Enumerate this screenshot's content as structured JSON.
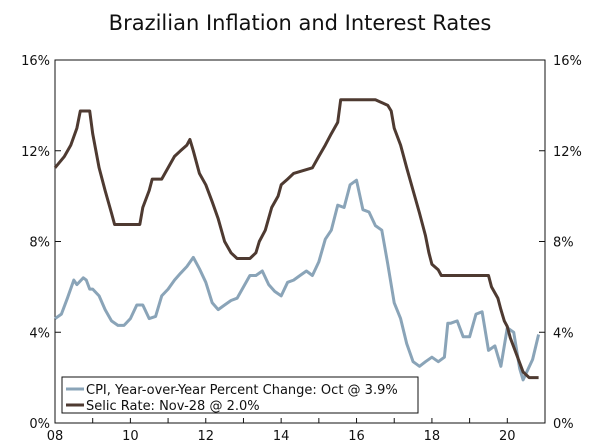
{
  "chart_data": {
    "type": "line",
    "title": "Brazilian Inflation and Interest Rates",
    "xlabel": "",
    "ylabel": "",
    "xlim": [
      2008.0,
      2021.0
    ],
    "ylim": [
      0,
      16
    ],
    "x_ticks": [
      "08",
      "10",
      "12",
      "14",
      "16",
      "18",
      "20"
    ],
    "y_ticks_left": [
      "0%",
      "4%",
      "8%",
      "12%",
      "16%"
    ],
    "y_ticks_right": [
      "0%",
      "4%",
      "8%",
      "12%",
      "16%"
    ],
    "grid": false,
    "legend_position": "bottom-left",
    "colors": {
      "cpi": "#8aa4b8",
      "selic": "#4e3a31",
      "axis": "#111111"
    },
    "series": [
      {
        "name": "CPI, Year-over-Year Percent Change: Oct @ 3.9%",
        "points": [
          [
            2008.0,
            4.6
          ],
          [
            2008.17,
            4.8
          ],
          [
            2008.33,
            5.5
          ],
          [
            2008.5,
            6.3
          ],
          [
            2008.58,
            6.1
          ],
          [
            2008.75,
            6.4
          ],
          [
            2008.83,
            6.3
          ],
          [
            2008.92,
            5.9
          ],
          [
            2009.0,
            5.9
          ],
          [
            2009.17,
            5.6
          ],
          [
            2009.33,
            5.0
          ],
          [
            2009.5,
            4.5
          ],
          [
            2009.67,
            4.3
          ],
          [
            2009.83,
            4.3
          ],
          [
            2010.0,
            4.6
          ],
          [
            2010.17,
            5.2
          ],
          [
            2010.33,
            5.2
          ],
          [
            2010.5,
            4.6
          ],
          [
            2010.67,
            4.7
          ],
          [
            2010.83,
            5.6
          ],
          [
            2011.0,
            5.9
          ],
          [
            2011.17,
            6.3
          ],
          [
            2011.33,
            6.6
          ],
          [
            2011.5,
            6.9
          ],
          [
            2011.67,
            7.3
          ],
          [
            2011.83,
            6.8
          ],
          [
            2012.0,
            6.2
          ],
          [
            2012.17,
            5.3
          ],
          [
            2012.33,
            5.0
          ],
          [
            2012.5,
            5.2
          ],
          [
            2012.67,
            5.4
          ],
          [
            2012.83,
            5.5
          ],
          [
            2013.0,
            6.0
          ],
          [
            2013.17,
            6.5
          ],
          [
            2013.33,
            6.5
          ],
          [
            2013.5,
            6.7
          ],
          [
            2013.67,
            6.1
          ],
          [
            2013.83,
            5.8
          ],
          [
            2014.0,
            5.6
          ],
          [
            2014.17,
            6.2
          ],
          [
            2014.33,
            6.3
          ],
          [
            2014.5,
            6.5
          ],
          [
            2014.67,
            6.7
          ],
          [
            2014.83,
            6.5
          ],
          [
            2015.0,
            7.1
          ],
          [
            2015.17,
            8.1
          ],
          [
            2015.33,
            8.5
          ],
          [
            2015.5,
            9.6
          ],
          [
            2015.67,
            9.5
          ],
          [
            2015.83,
            10.5
          ],
          [
            2016.0,
            10.7
          ],
          [
            2016.17,
            9.4
          ],
          [
            2016.33,
            9.3
          ],
          [
            2016.5,
            8.7
          ],
          [
            2016.67,
            8.5
          ],
          [
            2016.83,
            7.0
          ],
          [
            2017.0,
            5.3
          ],
          [
            2017.17,
            4.6
          ],
          [
            2017.33,
            3.5
          ],
          [
            2017.5,
            2.7
          ],
          [
            2017.67,
            2.5
          ],
          [
            2017.83,
            2.7
          ],
          [
            2018.0,
            2.9
          ],
          [
            2018.17,
            2.7
          ],
          [
            2018.33,
            2.9
          ],
          [
            2018.42,
            4.4
          ],
          [
            2018.5,
            4.4
          ],
          [
            2018.67,
            4.5
          ],
          [
            2018.83,
            3.8
          ],
          [
            2019.0,
            3.8
          ],
          [
            2019.17,
            4.8
          ],
          [
            2019.33,
            4.9
          ],
          [
            2019.5,
            3.2
          ],
          [
            2019.67,
            3.4
          ],
          [
            2019.83,
            2.5
          ],
          [
            2020.0,
            4.2
          ],
          [
            2020.17,
            4.0
          ],
          [
            2020.33,
            2.4
          ],
          [
            2020.42,
            1.9
          ],
          [
            2020.5,
            2.2
          ],
          [
            2020.67,
            2.8
          ],
          [
            2020.83,
            3.9
          ]
        ]
      },
      {
        "name": "Selic Rate: Nov-28 @ 2.0%",
        "points": [
          [
            2008.0,
            11.25
          ],
          [
            2008.25,
            11.75
          ],
          [
            2008.42,
            12.25
          ],
          [
            2008.58,
            13.0
          ],
          [
            2008.67,
            13.75
          ],
          [
            2008.92,
            13.75
          ],
          [
            2009.0,
            12.75
          ],
          [
            2009.17,
            11.25
          ],
          [
            2009.33,
            10.25
          ],
          [
            2009.5,
            9.25
          ],
          [
            2009.58,
            8.75
          ],
          [
            2009.83,
            8.75
          ],
          [
            2010.0,
            8.75
          ],
          [
            2010.25,
            8.75
          ],
          [
            2010.33,
            9.5
          ],
          [
            2010.5,
            10.25
          ],
          [
            2010.58,
            10.75
          ],
          [
            2010.83,
            10.75
          ],
          [
            2011.0,
            11.25
          ],
          [
            2011.17,
            11.75
          ],
          [
            2011.33,
            12.0
          ],
          [
            2011.5,
            12.25
          ],
          [
            2011.58,
            12.5
          ],
          [
            2011.67,
            12.0
          ],
          [
            2011.83,
            11.0
          ],
          [
            2012.0,
            10.5
          ],
          [
            2012.17,
            9.75
          ],
          [
            2012.33,
            9.0
          ],
          [
            2012.5,
            8.0
          ],
          [
            2012.67,
            7.5
          ],
          [
            2012.83,
            7.25
          ],
          [
            2013.0,
            7.25
          ],
          [
            2013.17,
            7.25
          ],
          [
            2013.33,
            7.5
          ],
          [
            2013.42,
            8.0
          ],
          [
            2013.58,
            8.5
          ],
          [
            2013.75,
            9.5
          ],
          [
            2013.92,
            10.0
          ],
          [
            2014.0,
            10.5
          ],
          [
            2014.17,
            10.75
          ],
          [
            2014.33,
            11.0
          ],
          [
            2014.83,
            11.25
          ],
          [
            2015.0,
            11.75
          ],
          [
            2015.17,
            12.25
          ],
          [
            2015.33,
            12.75
          ],
          [
            2015.5,
            13.25
          ],
          [
            2015.58,
            14.25
          ],
          [
            2016.5,
            14.25
          ],
          [
            2016.83,
            14.0
          ],
          [
            2016.92,
            13.75
          ],
          [
            2017.0,
            13.0
          ],
          [
            2017.17,
            12.25
          ],
          [
            2017.33,
            11.25
          ],
          [
            2017.5,
            10.25
          ],
          [
            2017.67,
            9.25
          ],
          [
            2017.83,
            8.25
          ],
          [
            2017.92,
            7.5
          ],
          [
            2018.0,
            7.0
          ],
          [
            2018.17,
            6.75
          ],
          [
            2018.25,
            6.5
          ],
          [
            2019.5,
            6.5
          ],
          [
            2019.58,
            6.0
          ],
          [
            2019.75,
            5.5
          ],
          [
            2019.83,
            5.0
          ],
          [
            2019.92,
            4.5
          ],
          [
            2020.0,
            4.25
          ],
          [
            2020.08,
            3.75
          ],
          [
            2020.25,
            3.0
          ],
          [
            2020.42,
            2.25
          ],
          [
            2020.58,
            2.0
          ],
          [
            2020.83,
            2.0
          ]
        ]
      }
    ]
  }
}
